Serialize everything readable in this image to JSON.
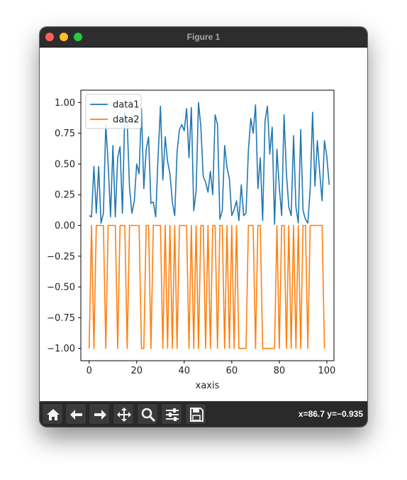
{
  "window": {
    "title": "Figure 1"
  },
  "toolbar": {
    "buttons": [
      {
        "name": "home-button",
        "icon": "home-icon"
      },
      {
        "name": "back-button",
        "icon": "arrow-left-icon"
      },
      {
        "name": "forward-button",
        "icon": "arrow-right-icon"
      },
      {
        "name": "pan-button",
        "icon": "move-icon"
      },
      {
        "name": "zoom-button",
        "icon": "magnifier-icon"
      },
      {
        "name": "configure-subplots-button",
        "icon": "sliders-icon"
      },
      {
        "name": "save-button",
        "icon": "floppy-disk-icon"
      }
    ],
    "coordinates": "x=86.7 y=−0.935"
  },
  "chart_data": {
    "type": "line",
    "xlabel": "xaxis",
    "ylabel": "",
    "xlim": [
      -3.5,
      103
    ],
    "ylim": [
      -1.1,
      1.1
    ],
    "xticks": [
      "0",
      "20",
      "40",
      "60",
      "80",
      "100"
    ],
    "yticks": [
      "1.00",
      "0.75",
      "0.50",
      "0.25",
      "0.00",
      "−0.25",
      "−0.50",
      "−0.75",
      "−1.00"
    ],
    "legend_position": "top-left",
    "grid": false,
    "series": [
      {
        "name": "data1",
        "color": "#1f77b4",
        "values": [
          0.08,
          0.07,
          0.48,
          0.1,
          0.48,
          0.02,
          0.1,
          0.82,
          0.5,
          0.07,
          0.65,
          0.07,
          0.55,
          0.64,
          0.1,
          0.92,
          0.84,
          0.3,
          0.1,
          0.2,
          0.5,
          0.42,
          0.95,
          0.3,
          0.62,
          0.72,
          0.18,
          0.19,
          0.07,
          0.56,
          0.97,
          0.37,
          0.72,
          0.52,
          0.42,
          0.19,
          0.08,
          0.6,
          0.78,
          0.82,
          0.77,
          0.95,
          0.55,
          0.96,
          0.12,
          0.28,
          1.0,
          0.8,
          0.4,
          0.35,
          0.27,
          0.44,
          0.25,
          0.9,
          0.82,
          0.05,
          0.12,
          0.65,
          0.47,
          0.38,
          0.08,
          0.13,
          0.2,
          0.04,
          0.33,
          0.08,
          0.1,
          0.61,
          0.87,
          0.75,
          0.98,
          0.3,
          0.55,
          0.04,
          0.85,
          0.97,
          0.58,
          0.8,
          0.01,
          0.62,
          0.31,
          0.08,
          0.9,
          0.42,
          0.15,
          0.08,
          0.73,
          0.15,
          0.02,
          0.78,
          0.12,
          0.05,
          0.02,
          0.3,
          0.92,
          0.32,
          0.69,
          0.43,
          0.2,
          0.69,
          0.56,
          0.33
        ]
      },
      {
        "name": "data2",
        "color": "#ff7f0e",
        "values": [
          -1,
          0,
          -1,
          0,
          0,
          0,
          0,
          -1,
          0,
          0,
          0,
          0,
          -1,
          0,
          0,
          0,
          -1,
          0,
          0,
          0,
          0,
          0,
          -1,
          -1,
          0,
          0,
          -1,
          0,
          0,
          0,
          0,
          -1,
          0,
          -1,
          0,
          -1,
          0,
          -1,
          0,
          0,
          0,
          0,
          -1,
          0,
          -1,
          0,
          -1,
          0,
          0,
          -1,
          0,
          -1,
          0,
          0,
          -1,
          0,
          0,
          -1,
          0,
          -1,
          0,
          -1,
          0,
          -1,
          -1,
          -1,
          -1,
          0,
          0,
          0,
          -1,
          0,
          0,
          -1,
          -1,
          -1,
          -1,
          -1,
          -1,
          0,
          -1,
          0,
          0,
          -1,
          0,
          -1,
          0,
          -1,
          0,
          -1,
          0,
          0,
          -1,
          0,
          0,
          0,
          0,
          0,
          0,
          -1
        ]
      }
    ]
  }
}
